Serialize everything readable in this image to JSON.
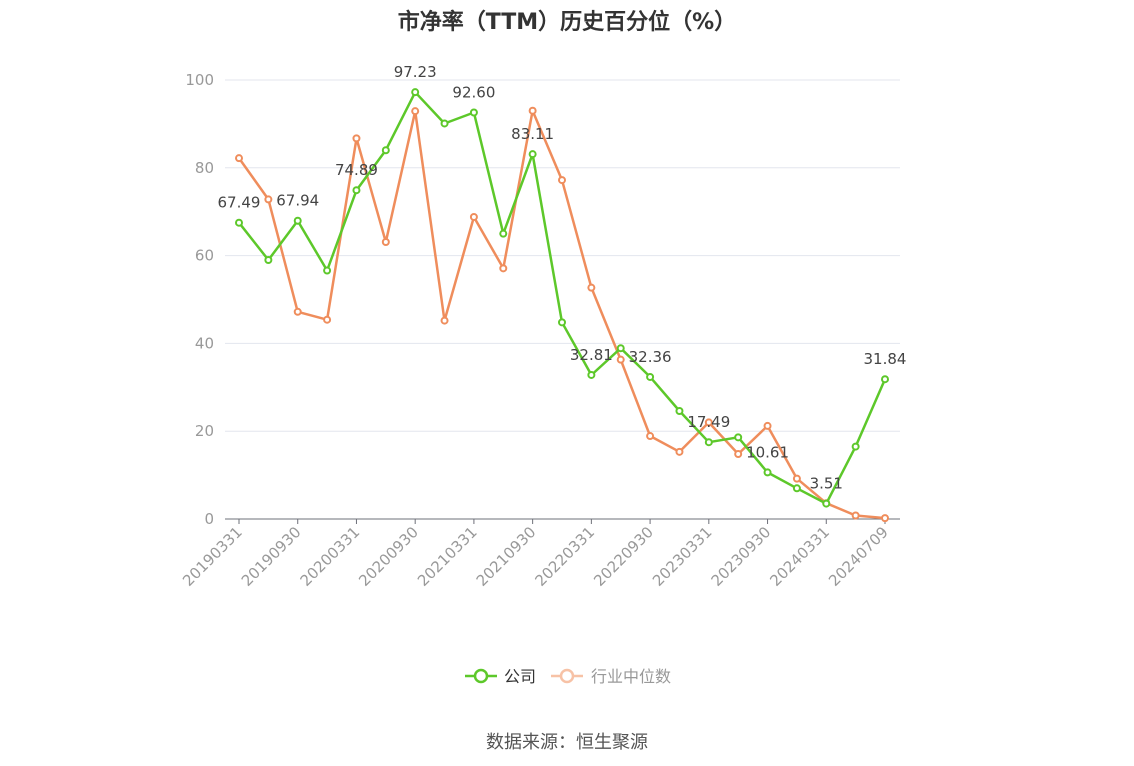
{
  "chart_data": {
    "type": "line",
    "title": "市净率（TTM）历史百分位（%）",
    "source": "数据来源：恒生聚源",
    "ylim": [
      0,
      100
    ],
    "y_ticks": [
      0,
      20,
      40,
      60,
      80,
      100
    ],
    "grid": true,
    "legend_position": "bottom-center",
    "x": [
      "20190331",
      "20190630",
      "20190930",
      "20191231",
      "20200331",
      "20200630",
      "20200930",
      "20201231",
      "20210331",
      "20210630",
      "20210930",
      "20211231",
      "20220331",
      "20220630",
      "20220930",
      "20221231",
      "20230331",
      "20230630",
      "20230930",
      "20231231",
      "20240331",
      "20240630",
      "20240709"
    ],
    "x_tick_labels": [
      "20190331",
      "20190930",
      "20200331",
      "20200930",
      "20210331",
      "20210930",
      "20220331",
      "20220930",
      "20230331",
      "20230930",
      "20240331",
      "20240709"
    ],
    "series": [
      {
        "name": "公司",
        "color": "#5dc82a",
        "values": [
          67.49,
          59.0,
          67.94,
          56.6,
          74.89,
          84.0,
          97.23,
          90.1,
          92.6,
          65.0,
          83.11,
          44.8,
          32.81,
          38.9,
          32.36,
          24.6,
          17.49,
          18.6,
          10.61,
          7.0,
          3.51,
          16.5,
          31.84
        ],
        "labels": {
          "0": "67.49",
          "2": "67.94",
          "4": "74.89",
          "6": "97.23",
          "8": "92.60",
          "10": "83.11",
          "12": "32.81",
          "14": "32.36",
          "16": "17.49",
          "18": "10.61",
          "20": "3.51",
          "22": "31.84"
        }
      },
      {
        "name": "行业中位数",
        "color": "#ef8d5c",
        "values": [
          82.2,
          72.8,
          47.2,
          45.4,
          86.7,
          63.1,
          92.9,
          45.2,
          68.8,
          57.1,
          93.0,
          77.2,
          52.7,
          36.3,
          18.9,
          15.3,
          22.0,
          14.8,
          21.2,
          9.2,
          3.6,
          0.8,
          0.2
        ]
      }
    ]
  }
}
